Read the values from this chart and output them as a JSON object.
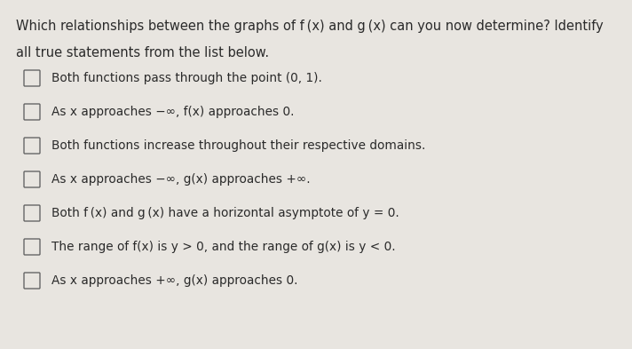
{
  "background_color": "#e8e5e0",
  "title_line1": "Which relationships between the graphs of f (x) and g (x) can you now determine? Identify",
  "title_line2": "all true statements from the list below.",
  "items": [
    "Both functions pass through the point (0, 1).",
    "As x approaches −∞, f(x) approaches 0.",
    "Both functions increase throughout their respective domains.",
    "As x approaches −∞, g(x) approaches +∞.",
    "Both f (x) and g (x) have a horizontal asymptote of y = 0.",
    "The range of f(x) is y > 0, and the range of g(x) is y < 0.",
    "As x approaches +∞, g(x) approaches 0."
  ],
  "title_fontsize": 10.5,
  "item_fontsize": 9.8,
  "title_color": "#2a2a2a",
  "item_color": "#2a2a2a",
  "checkbox_color": "#666666",
  "fig_width": 7.12,
  "fig_height": 3.93,
  "dpi": 100
}
